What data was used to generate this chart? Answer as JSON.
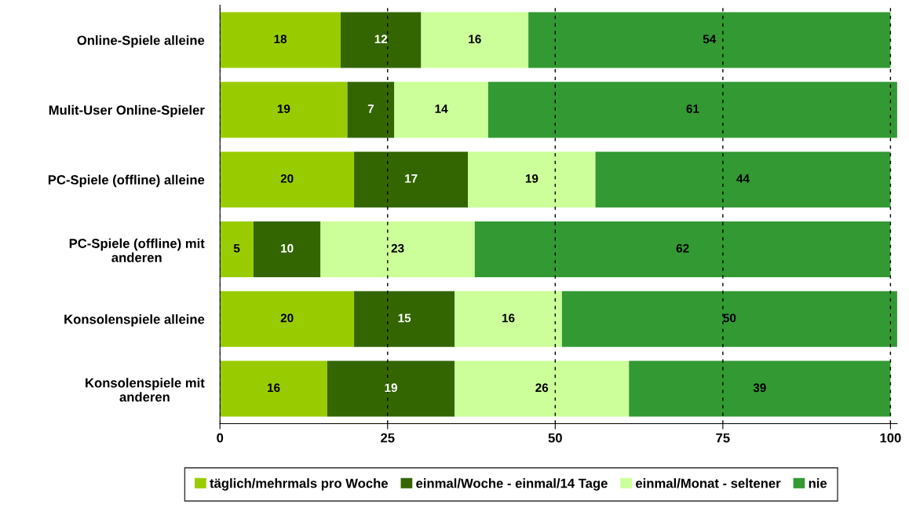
{
  "chart_data": {
    "type": "bar",
    "orientation": "horizontal",
    "stacked": true,
    "categories": [
      "Online-Spiele alleine",
      "Mulit-User Online-Spieler",
      "PC-Spiele (offline) alleine",
      "PC-Spiele (offline) mit\nanderen",
      "Konsolenspiele alleine",
      "Konsolenspiele mit\nanderen"
    ],
    "series": [
      {
        "name": "täglich/mehrmals pro Woche",
        "color": "#99cc00",
        "values": [
          18,
          19,
          20,
          5,
          20,
          16
        ]
      },
      {
        "name": "einmal/Woche - einmal/14 Tage",
        "color": "#336600",
        "values": [
          12,
          7,
          17,
          10,
          15,
          19
        ]
      },
      {
        "name": "einmal/Monat - seltener",
        "color": "#ccff99",
        "values": [
          16,
          14,
          19,
          23,
          16,
          26
        ]
      },
      {
        "name": "nie",
        "color": "#339933",
        "values": [
          54,
          61,
          44,
          62,
          50,
          39
        ]
      }
    ],
    "xlim": [
      0,
      101
    ],
    "xticks": [
      0,
      25,
      50,
      75,
      100
    ],
    "grid": "x",
    "legend": "bottom",
    "data_labels": true
  }
}
